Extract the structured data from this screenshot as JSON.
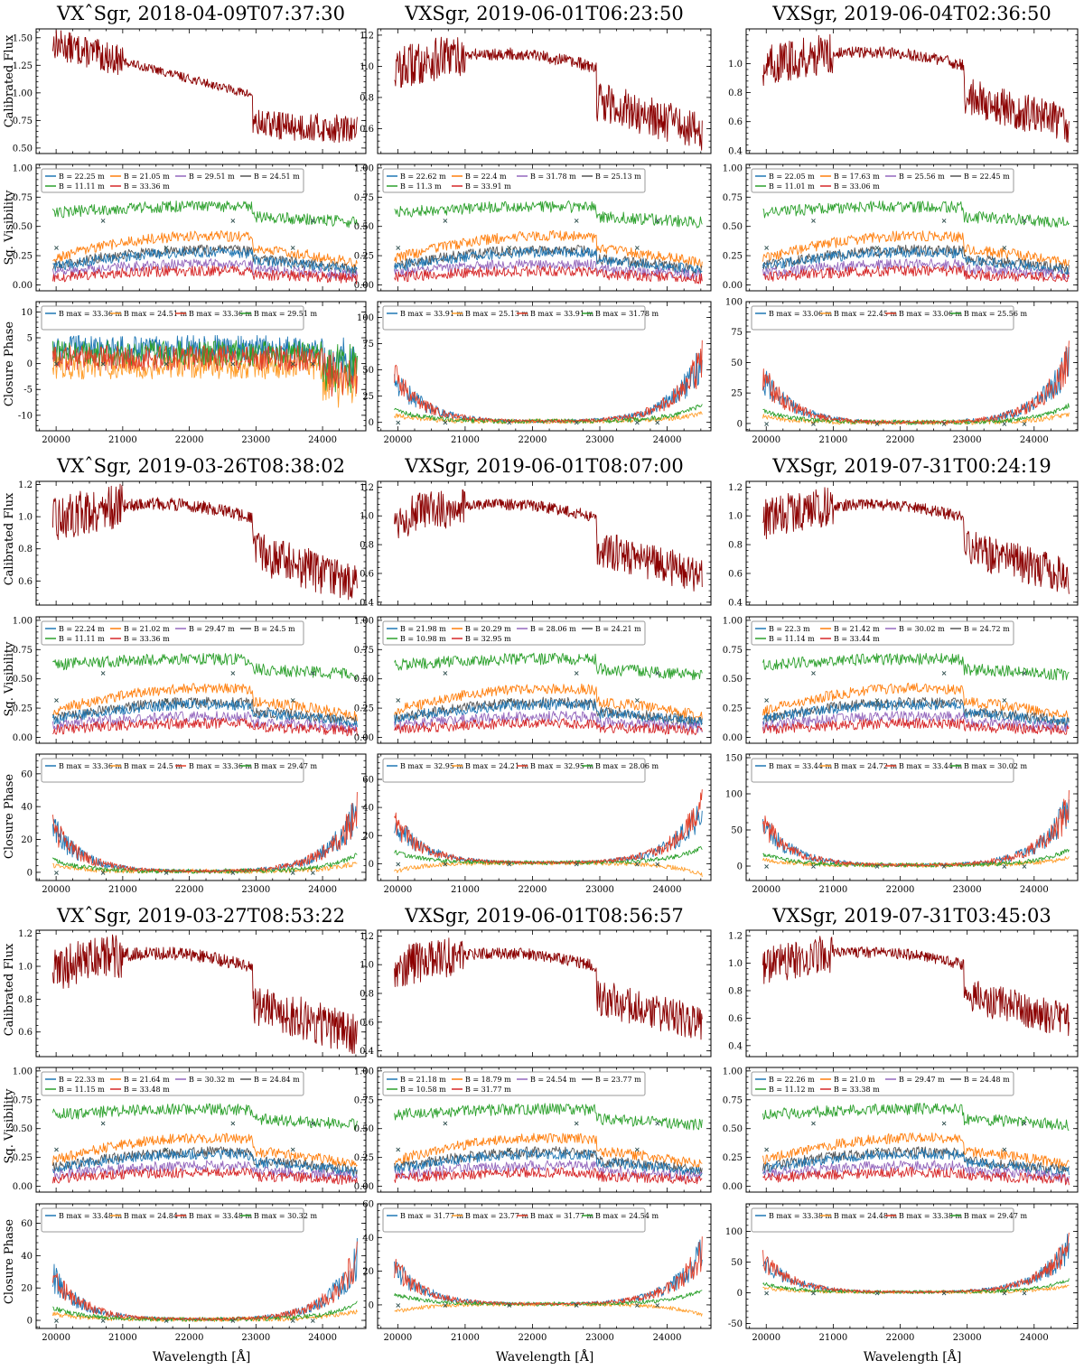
{
  "labels": {
    "flux_ylabel": "Calibrated Flux",
    "vis_ylabel": "Sq. Visibility",
    "cp_ylabel": "Closure Phase",
    "xlabel": "Wavelength [Å]"
  },
  "colors": {
    "flux": "#8b0000",
    "series": [
      "#1f77b4",
      "#ff7f0e",
      "#9467bd",
      "#555555",
      "#2ca02c",
      "#d62728"
    ],
    "cp_series": [
      "#1f77b4",
      "#ff9f2e",
      "#e2402a",
      "#2ca02c"
    ],
    "marker": "#2f4f4f"
  },
  "x_axis": {
    "range": [
      19700,
      24650
    ],
    "ticks": [
      20000,
      21000,
      22000,
      23000,
      24000
    ]
  },
  "chart_data": [
    {
      "type": "line",
      "title": "VXˆSgr, 2018-04-09T07:37:30",
      "flux": {
        "ylim": [
          0.45,
          1.58
        ],
        "yticks": [
          0.5,
          0.75,
          1.0,
          1.25,
          1.5
        ]
      },
      "vis": {
        "ylim": [
          -0.05,
          1.03
        ],
        "yticks": [
          0.0,
          0.25,
          0.5,
          0.75,
          1.0
        ],
        "baselines": [
          "22.25",
          "21.05",
          "29.51",
          "24.51",
          "11.11",
          "33.36"
        ]
      },
      "cp": {
        "ylim": [
          -13,
          12
        ],
        "yticks": [
          -10,
          -5,
          0,
          5,
          10
        ],
        "baselines": [
          "33.36",
          "24.51",
          "33.36",
          "29.51"
        ]
      }
    },
    {
      "type": "line",
      "title": "VXSgr, 2019-06-01T06:23:50",
      "flux": {
        "ylim": [
          0.44,
          1.24
        ],
        "yticks": [
          0.6,
          0.8,
          1.0,
          1.2
        ]
      },
      "vis": {
        "ylim": [
          -0.05,
          1.03
        ],
        "yticks": [
          0.0,
          0.25,
          0.5,
          0.75,
          1.0
        ],
        "baselines": [
          "22.62",
          "22.4",
          "31.78",
          "25.13",
          "11.3",
          "33.91"
        ]
      },
      "cp": {
        "ylim": [
          -8,
          115
        ],
        "yticks": [
          0,
          25,
          50,
          75,
          100
        ],
        "baselines": [
          "33.91",
          "25.13",
          "33.91",
          "31.78"
        ]
      }
    },
    {
      "type": "line",
      "title": "VXSgr, 2019-06-04T02:36:50",
      "flux": {
        "ylim": [
          0.38,
          1.24
        ],
        "yticks": [
          0.4,
          0.6,
          0.8,
          1.0
        ]
      },
      "vis": {
        "ylim": [
          -0.05,
          1.03
        ],
        "yticks": [
          0.0,
          0.25,
          0.5,
          0.75,
          1.0
        ],
        "baselines": [
          "22.05",
          "17.63",
          "25.56",
          "22.45",
          "11.01",
          "33.06"
        ]
      },
      "cp": {
        "ylim": [
          -6,
          100
        ],
        "yticks": [
          0,
          25,
          50,
          75,
          100
        ],
        "baselines": [
          "33.06",
          "22.45",
          "33.06",
          "25.56"
        ]
      }
    },
    {
      "type": "line",
      "title": "VXˆSgr, 2019-03-26T08:38:02",
      "flux": {
        "ylim": [
          0.45,
          1.22
        ],
        "yticks": [
          0.6,
          0.8,
          1.0,
          1.2
        ]
      },
      "vis": {
        "ylim": [
          -0.05,
          1.03
        ],
        "yticks": [
          0.0,
          0.25,
          0.5,
          0.75,
          1.0
        ],
        "baselines": [
          "22.24",
          "21.02",
          "29.47",
          "24.5",
          "11.11",
          "33.36"
        ]
      },
      "cp": {
        "ylim": [
          -5,
          72
        ],
        "yticks": [
          0,
          20,
          40,
          60
        ],
        "baselines": [
          "33.36",
          "24.5",
          "33.36",
          "29.47"
        ]
      }
    },
    {
      "type": "line",
      "title": "VXSgr, 2019-06-01T08:07:00",
      "flux": {
        "ylim": [
          0.38,
          1.24
        ],
        "yticks": [
          0.4,
          0.6,
          0.8,
          1.0,
          1.2
        ]
      },
      "vis": {
        "ylim": [
          -0.05,
          1.03
        ],
        "yticks": [
          0.0,
          0.25,
          0.5,
          0.75,
          1.0
        ],
        "baselines": [
          "21.98",
          "20.29",
          "28.06",
          "24.21",
          "10.98",
          "32.95"
        ]
      },
      "cp": {
        "ylim": [
          -12,
          78
        ],
        "yticks": [
          0,
          20,
          40,
          60
        ],
        "baselines": [
          "32.95",
          "24.21",
          "32.95",
          "28.06"
        ]
      }
    },
    {
      "type": "line",
      "title": "VXSgr, 2019-07-31T00:24:19",
      "flux": {
        "ylim": [
          0.38,
          1.24
        ],
        "yticks": [
          0.4,
          0.6,
          0.8,
          1.0,
          1.2
        ]
      },
      "vis": {
        "ylim": [
          -0.05,
          1.03
        ],
        "yticks": [
          0.0,
          0.25,
          0.5,
          0.75,
          1.0
        ],
        "baselines": [
          "22.3",
          "21.42",
          "30.02",
          "24.72",
          "11.14",
          "33.44"
        ]
      },
      "cp": {
        "ylim": [
          -20,
          155
        ],
        "yticks": [
          0,
          50,
          100,
          150
        ],
        "baselines": [
          "33.44",
          "24.72",
          "33.44",
          "30.02"
        ]
      }
    },
    {
      "type": "line",
      "title": "VXˆSgr, 2019-03-27T08:53:22",
      "flux": {
        "ylim": [
          0.45,
          1.22
        ],
        "yticks": [
          0.6,
          0.8,
          1.0,
          1.2
        ]
      },
      "vis": {
        "ylim": [
          -0.05,
          1.03
        ],
        "yticks": [
          0.0,
          0.25,
          0.5,
          0.75,
          1.0
        ],
        "baselines": [
          "22.33",
          "21.64",
          "30.32",
          "24.84",
          "11.15",
          "33.48"
        ]
      },
      "cp": {
        "ylim": [
          -5,
          72
        ],
        "yticks": [
          0,
          20,
          40,
          60
        ],
        "baselines": [
          "33.48",
          "24.84",
          "33.48",
          "30.32"
        ]
      }
    },
    {
      "type": "line",
      "title": "VXSgr, 2019-06-01T08:56:57",
      "flux": {
        "ylim": [
          0.36,
          1.24
        ],
        "yticks": [
          0.4,
          0.6,
          0.8,
          1.0,
          1.2
        ]
      },
      "vis": {
        "ylim": [
          -0.05,
          1.03
        ],
        "yticks": [
          0.0,
          0.25,
          0.5,
          0.75,
          1.0
        ],
        "baselines": [
          "21.18",
          "18.79",
          "24.54",
          "23.77",
          "10.58",
          "31.77"
        ]
      },
      "cp": {
        "ylim": [
          -14,
          60
        ],
        "yticks": [
          0,
          20,
          40,
          60
        ],
        "baselines": [
          "31.77",
          "23.77",
          "31.77",
          "24.54"
        ]
      }
    },
    {
      "type": "line",
      "title": "VXSgr, 2019-07-31T03:45:03",
      "flux": {
        "ylim": [
          0.32,
          1.24
        ],
        "yticks": [
          0.4,
          0.6,
          0.8,
          1.0,
          1.2
        ]
      },
      "vis": {
        "ylim": [
          -0.05,
          1.03
        ],
        "yticks": [
          0.0,
          0.25,
          0.5,
          0.75,
          1.0
        ],
        "baselines": [
          "22.26",
          "21.0",
          "29.47",
          "24.48",
          "11.12",
          "33.38"
        ]
      },
      "cp": {
        "ylim": [
          -58,
          145
        ],
        "yticks": [
          -50,
          0,
          50,
          100
        ],
        "baselines": [
          "33.38",
          "24.48",
          "33.38",
          "29.47"
        ]
      }
    }
  ]
}
